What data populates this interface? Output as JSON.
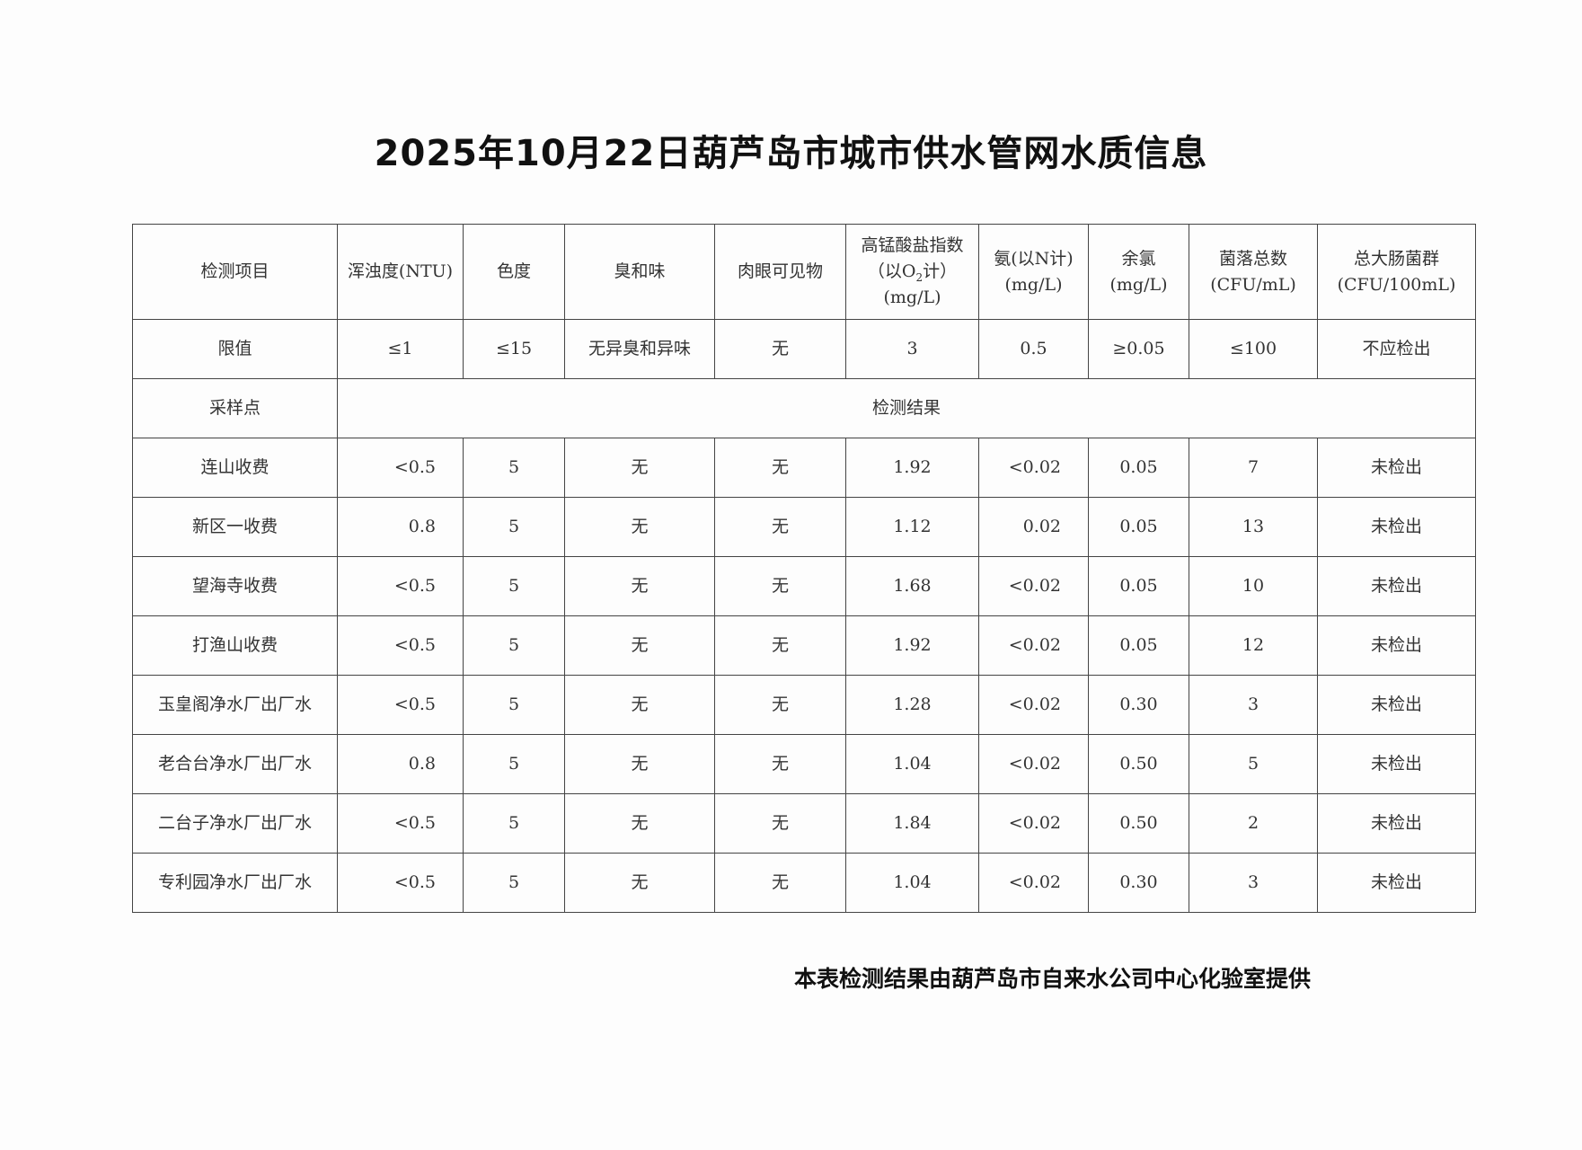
{
  "title": "2025年10月22日葫芦岛市城市供水管网水质信息",
  "headers": [
    "检测项目",
    "浑浊度(NTU)",
    "色度",
    "臭和味",
    "肉眼可见物",
    "高锰酸盐指数",
    "（以O",
    "2",
    "计）",
    "(mg/L)",
    "氨(以N计)",
    "(mg/L)",
    "余氯",
    "(mg/L)",
    "菌落总数",
    "(CFU/mL)",
    "总大肠菌群",
    "(CFU/100mL)"
  ],
  "limits": [
    "限值",
    "≤1",
    "≤15",
    "无异臭和异味",
    "无",
    "3",
    "0.5",
    "≥0.05",
    "≤100",
    "不应检出"
  ],
  "section": {
    "label": "采样点",
    "result_label": "检测结果"
  },
  "rows": [
    [
      "连山收费",
      "<0.5",
      "5",
      "无",
      "无",
      "1.92",
      "<0.02",
      "0.05",
      "7",
      "未检出"
    ],
    [
      "新区一收费",
      "0.8",
      "5",
      "无",
      "无",
      "1.12",
      "0.02",
      "0.05",
      "13",
      "未检出"
    ],
    [
      "望海寺收费",
      "<0.5",
      "5",
      "无",
      "无",
      "1.68",
      "<0.02",
      "0.05",
      "10",
      "未检出"
    ],
    [
      "打渔山收费",
      "<0.5",
      "5",
      "无",
      "无",
      "1.92",
      "<0.02",
      "0.05",
      "12",
      "未检出"
    ],
    [
      "玉皇阁净水厂出厂水",
      "<0.5",
      "5",
      "无",
      "无",
      "1.28",
      "<0.02",
      "0.30",
      "3",
      "未检出"
    ],
    [
      "老合台净水厂出厂水",
      "0.8",
      "5",
      "无",
      "无",
      "1.04",
      "<0.02",
      "0.50",
      "5",
      "未检出"
    ],
    [
      "二台子净水厂出厂水",
      "<0.5",
      "5",
      "无",
      "无",
      "1.84",
      "<0.02",
      "0.50",
      "2",
      "未检出"
    ],
    [
      "专利园净水厂出厂水",
      "<0.5",
      "5",
      "无",
      "无",
      "1.04",
      "<0.02",
      "0.30",
      "3",
      "未检出"
    ]
  ],
  "footer": "本表检测结果由葫芦岛市自来水公司中心化验室提供"
}
